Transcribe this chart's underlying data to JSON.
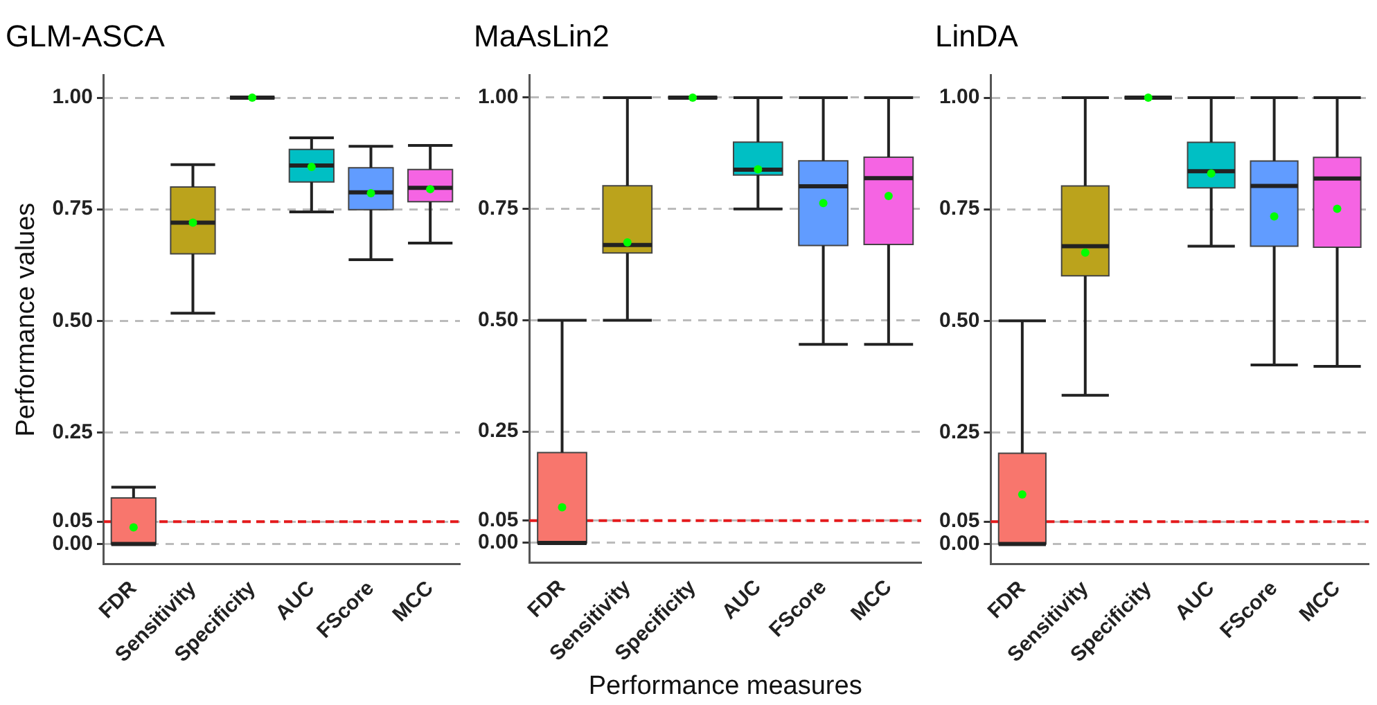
{
  "chart_data": [
    {
      "type": "box",
      "title": "GLM-ASCA",
      "ylabel": "Performance values",
      "categories": [
        "FDR",
        "Sensitivity",
        "Specificity",
        "AUC",
        "FScore",
        "MCC"
      ],
      "colors": [
        "#f8766d",
        "#bba31c",
        "#444444",
        "#00bfc4",
        "#619cff",
        "#f564e3"
      ],
      "boxes": [
        {
          "low": 0,
          "q1": 0,
          "median": 0,
          "q3": 0.103,
          "high": 0.127,
          "mean": 0.037
        },
        {
          "low": 0.517,
          "q1": 0.65,
          "median": 0.72,
          "q3": 0.8,
          "high": 0.85,
          "mean": 0.72
        },
        {
          "low": 1,
          "q1": 1,
          "median": 1,
          "q3": 1,
          "high": 1,
          "mean": 1
        },
        {
          "low": 0.744,
          "q1": 0.811,
          "median": 0.848,
          "q3": 0.884,
          "high": 0.91,
          "mean": 0.845
        },
        {
          "low": 0.637,
          "q1": 0.749,
          "median": 0.788,
          "q3": 0.843,
          "high": 0.891,
          "mean": 0.786
        },
        {
          "low": 0.674,
          "q1": 0.767,
          "median": 0.798,
          "q3": 0.839,
          "high": 0.893,
          "mean": 0.795
        }
      ],
      "ylim": [
        -0.045,
        1.05
      ],
      "yticks": [
        {
          "value": 0,
          "label": "0.00"
        },
        {
          "value": 0.05,
          "label": "0.05"
        },
        {
          "value": 0.25,
          "label": "0.25"
        },
        {
          "value": 0.5,
          "label": "0.50"
        },
        {
          "value": 0.75,
          "label": "0.75"
        },
        {
          "value": 1,
          "label": "1.00"
        }
      ],
      "ref_lines": [
        {
          "axis": "y",
          "value": 0.05,
          "color": "#e41a1c",
          "line_style": "dashed"
        }
      ],
      "grid": "y",
      "legend": false
    },
    {
      "type": "box",
      "title": "MaAsLin2",
      "xlabel": "Performance measures",
      "categories": [
        "FDR",
        "Sensitivity",
        "Specificity",
        "AUC",
        "FScore",
        "MCC"
      ],
      "colors": [
        "#f8766d",
        "#bba31c",
        "#444444",
        "#00bfc4",
        "#619cff",
        "#f564e3"
      ],
      "boxes": [
        {
          "low": 0,
          "q1": 0,
          "median": 0,
          "q3": 0.203,
          "high": 0.5,
          "mean": 0.08
        },
        {
          "low": 0.5,
          "q1": 0.651,
          "median": 0.669,
          "q3": 0.802,
          "high": 1,
          "mean": 0.675
        },
        {
          "low": 1,
          "q1": 1,
          "median": 1,
          "q3": 1,
          "high": 1,
          "mean": 1
        },
        {
          "low": 0.75,
          "q1": 0.826,
          "median": 0.838,
          "q3": 0.9,
          "high": 1,
          "mean": 0.839
        },
        {
          "low": 0.446,
          "q1": 0.668,
          "median": 0.801,
          "q3": 0.858,
          "high": 1,
          "mean": 0.763
        },
        {
          "low": 0.446,
          "q1": 0.67,
          "median": 0.819,
          "q3": 0.866,
          "high": 1,
          "mean": 0.779
        }
      ],
      "ylim": [
        -0.045,
        1.05
      ],
      "yticks": [
        {
          "value": 0,
          "label": "0.00"
        },
        {
          "value": 0.05,
          "label": "0.05"
        },
        {
          "value": 0.25,
          "label": "0.25"
        },
        {
          "value": 0.5,
          "label": "0.50"
        },
        {
          "value": 0.75,
          "label": "0.75"
        },
        {
          "value": 1,
          "label": "1.00"
        }
      ],
      "ref_lines": [
        {
          "axis": "y",
          "value": 0.05,
          "color": "#e41a1c",
          "line_style": "dashed"
        }
      ],
      "grid": "y",
      "legend": false
    },
    {
      "type": "box",
      "title": "LinDA",
      "categories": [
        "FDR",
        "Sensitivity",
        "Specificity",
        "AUC",
        "FScore",
        "MCC"
      ],
      "colors": [
        "#f8766d",
        "#bba31c",
        "#444444",
        "#00bfc4",
        "#619cff",
        "#f564e3"
      ],
      "boxes": [
        {
          "low": 0,
          "q1": 0,
          "median": 0,
          "q3": 0.203,
          "high": 0.5,
          "mean": 0.111
        },
        {
          "low": 0.333,
          "q1": 0.601,
          "median": 0.667,
          "q3": 0.802,
          "high": 1,
          "mean": 0.653
        },
        {
          "low": 1,
          "q1": 1,
          "median": 1,
          "q3": 1,
          "high": 1,
          "mean": 1
        },
        {
          "low": 0.667,
          "q1": 0.798,
          "median": 0.835,
          "q3": 0.9,
          "high": 1,
          "mean": 0.83
        },
        {
          "low": 0.401,
          "q1": 0.667,
          "median": 0.802,
          "q3": 0.858,
          "high": 1,
          "mean": 0.734
        },
        {
          "low": 0.398,
          "q1": 0.665,
          "median": 0.819,
          "q3": 0.866,
          "high": 1,
          "mean": 0.751
        }
      ],
      "ylim": [
        -0.045,
        1.05
      ],
      "yticks": [
        {
          "value": 0,
          "label": "0.00"
        },
        {
          "value": 0.05,
          "label": "0.05"
        },
        {
          "value": 0.25,
          "label": "0.25"
        },
        {
          "value": 0.5,
          "label": "0.50"
        },
        {
          "value": 0.75,
          "label": "0.75"
        },
        {
          "value": 1,
          "label": "1.00"
        }
      ],
      "ref_lines": [
        {
          "axis": "y",
          "value": 0.05,
          "color": "#e41a1c",
          "line_style": "dashed"
        }
      ],
      "grid": "y",
      "legend": false
    }
  ]
}
